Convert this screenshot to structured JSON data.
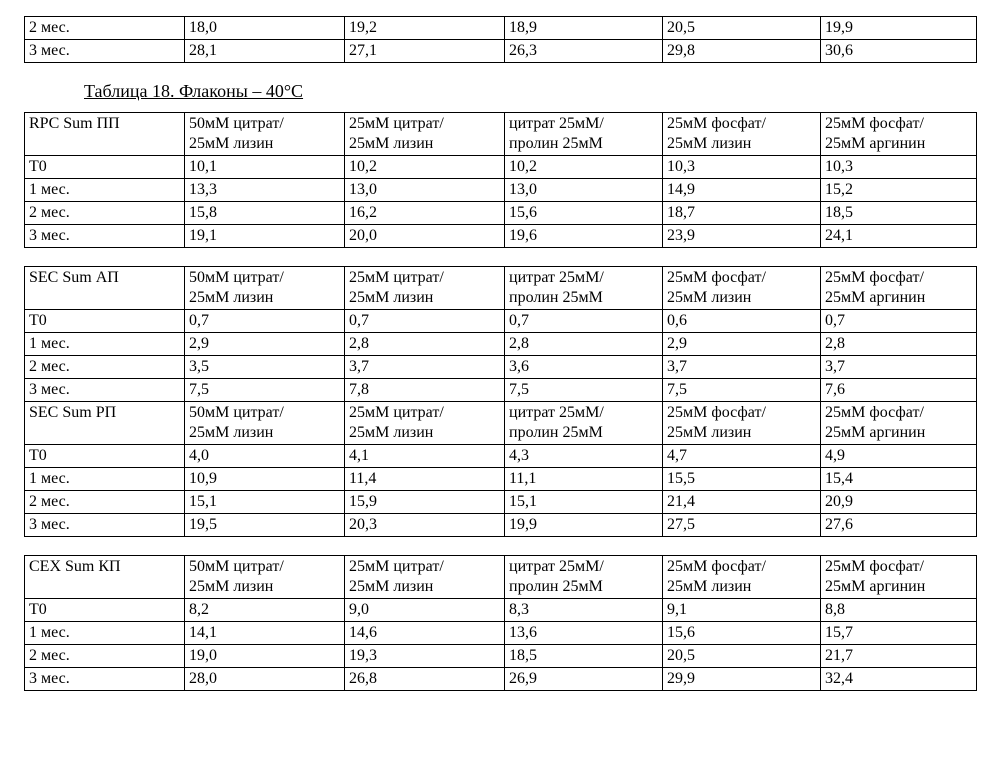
{
  "title": "Таблица 18. Флаконы – 40°С",
  "top_table": {
    "rows": [
      [
        "2 мес.",
        "18,0",
        "19,2",
        "18,9",
        "20,5",
        "19,9"
      ],
      [
        "3 мес.",
        "28,1",
        "27,1",
        "26,3",
        "29,8",
        "30,6"
      ]
    ]
  },
  "table_rpc": {
    "header": {
      "c0": "RPC Sum ПП",
      "c1a": "50мМ цитрат/",
      "c1b": "25мМ лизин",
      "c2a": "25мМ цитрат/",
      "c2b": "25мМ лизин",
      "c3a": "цитрат 25мМ/",
      "c3b": "пролин 25мМ",
      "c4a": "25мМ фосфат/",
      "c4b": "25мМ лизин",
      "c5a": "25мМ фосфат/",
      "c5b": "25мМ аргинин"
    },
    "rows": [
      [
        "T0",
        "10,1",
        "10,2",
        "10,2",
        "10,3",
        "10,3"
      ],
      [
        "1 мес.",
        "13,3",
        "13,0",
        "13,0",
        "14,9",
        "15,2"
      ],
      [
        "2 мес.",
        "15,8",
        "16,2",
        "15,6",
        "18,7",
        "18,5"
      ],
      [
        "3 мес.",
        "19,1",
        "20,0",
        "19,6",
        "23,9",
        "24,1"
      ]
    ]
  },
  "table_sec": {
    "header_ap": {
      "c0": "SEC Sum АП",
      "c1a": "50мМ цитрат/",
      "c1b": "25мМ лизин",
      "c2a": "25мМ цитрат/",
      "c2b": "25мМ лизин",
      "c3a": "цитрат 25мМ/",
      "c3b": "пролин 25мМ",
      "c4a": "25мМ фосфат/",
      "c4b": "25мМ лизин",
      "c5a": "25мМ фосфат/",
      "c5b": "25мМ аргинин"
    },
    "rows_ap": [
      [
        "T0",
        "0,7",
        "0,7",
        "0,7",
        "0,6",
        "0,7"
      ],
      [
        "1 мес.",
        "2,9",
        "2,8",
        "2,8",
        "2,9",
        "2,8"
      ],
      [
        "2 мес.",
        "3,5",
        "3,7",
        "3,6",
        "3,7",
        "3,7"
      ],
      [
        "3 мес.",
        "7,5",
        "7,8",
        "7,5",
        "7,5",
        "7,6"
      ]
    ],
    "header_rp": {
      "c0": "SEC Sum РП",
      "c1a": "50мМ цитрат/",
      "c1b": "25мМ лизин",
      "c2a": "25мМ цитрат/",
      "c2b": "25мМ лизин",
      "c3a": "цитрат 25мМ/",
      "c3b": "пролин 25мМ",
      "c4a": "25мМ фосфат/",
      "c4b": "25мМ лизин",
      "c5a": "25мМ фосфат/",
      "c5b": "25мМ аргинин"
    },
    "rows_rp": [
      [
        "T0",
        "4,0",
        "4,1",
        "4,3",
        "4,7",
        "4,9"
      ],
      [
        "1 мес.",
        "10,9",
        "11,4",
        "11,1",
        "15,5",
        "15,4"
      ],
      [
        "2 мес.",
        "15,1",
        "15,9",
        "15,1",
        "21,4",
        "20,9"
      ],
      [
        "3 мес.",
        "19,5",
        "20,3",
        "19,9",
        "27,5",
        "27,6"
      ]
    ]
  },
  "table_cex": {
    "header": {
      "c0": "CEX Sum КП",
      "c1a": "50мМ цитрат/",
      "c1b": "25мМ лизин",
      "c2a": "25мМ цитрат/",
      "c2b": "25мМ лизин",
      "c3a": "цитрат 25мМ/",
      "c3b": "пролин 25мМ",
      "c4a": "25мМ фосфат/",
      "c4b": "25мМ лизин",
      "c5a": "25мМ фосфат/",
      "c5b": "25мМ аргинин"
    },
    "rows": [
      [
        "T0",
        "8,2",
        "9,0",
        "8,3",
        "9,1",
        "8,8"
      ],
      [
        "1 мес.",
        "14,1",
        "14,6",
        "13,6",
        "15,6",
        "15,7"
      ],
      [
        "2 мес.",
        "19,0",
        "19,3",
        "18,5",
        "20,5",
        "21,7"
      ],
      [
        "3 мес.",
        "28,0",
        "26,8",
        "26,9",
        "29,9",
        "32,4"
      ]
    ]
  }
}
